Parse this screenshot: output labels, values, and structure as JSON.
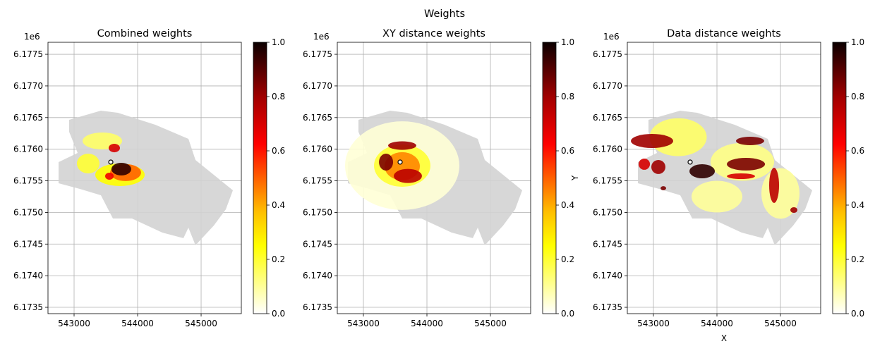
{
  "chart_data": {
    "type": "scatter",
    "suptitle": "Weights",
    "xlim": [
      542589,
      545633
    ],
    "ylim": [
      6173400,
      6177690
    ],
    "x_ticks": [
      543000,
      544000,
      545000
    ],
    "x_tick_labels": [
      "543000",
      "544000",
      "545000"
    ],
    "y_ticks": [
      6173500,
      6174000,
      6174500,
      6175000,
      6175500,
      6176000,
      6176500,
      6177000,
      6177500
    ],
    "y_tick_labels": [
      "6.1735",
      "6.1740",
      "6.1745",
      "6.1750",
      "6.1755",
      "6.1760",
      "6.1765",
      "6.1770",
      "6.1775"
    ],
    "y_offset_label": "1e6",
    "grid": true,
    "colormap": "hot_r",
    "colorbar_ticks": [
      0.0,
      0.2,
      0.4,
      0.6,
      0.8,
      1.0
    ],
    "colorbar_tick_labels": [
      "0.0",
      "0.2",
      "0.4",
      "0.6",
      "0.8",
      "1.0"
    ],
    "background_color": "#d3d3d3",
    "marker": {
      "x": 543578,
      "y": 6175796
    },
    "footprint": [
      [
        542922,
        6176464
      ],
      [
        543422,
        6176609
      ],
      [
        543689,
        6176576
      ],
      [
        544278,
        6176386
      ],
      [
        544800,
        6176163
      ],
      [
        544911,
        6175829
      ],
      [
        545500,
        6175350
      ],
      [
        545389,
        6175049
      ],
      [
        545200,
        6174793
      ],
      [
        544911,
        6174481
      ],
      [
        544800,
        6174760
      ],
      [
        544722,
        6174593
      ],
      [
        544389,
        6174682
      ],
      [
        543911,
        6174904
      ],
      [
        543611,
        6174904
      ],
      [
        543422,
        6175272
      ],
      [
        543089,
        6175372
      ],
      [
        542756,
        6175462
      ],
      [
        542756,
        6175796
      ],
      [
        543056,
        6175941
      ],
      [
        542922,
        6176275
      ]
    ],
    "panels": [
      {
        "title": "Combined weights",
        "xlabel": "",
        "ylabel": "",
        "patches": [
          {
            "x": 543445,
            "y": 6176130,
            "rx": 311,
            "ry": 134,
            "w": 0.15
          },
          {
            "x": 543722,
            "y": 6175595,
            "rx": 389,
            "ry": 178,
            "w": 0.25
          },
          {
            "x": 543222,
            "y": 6175773,
            "rx": 178,
            "ry": 156,
            "w": 0.2
          },
          {
            "x": 543811,
            "y": 6175630,
            "rx": 244,
            "ry": 134,
            "w": 0.5
          },
          {
            "x": 543633,
            "y": 6176018,
            "rx": 89,
            "ry": 67,
            "w": 0.7
          },
          {
            "x": 543556,
            "y": 6175573,
            "rx": 67,
            "ry": 56,
            "w": 0.65
          },
          {
            "x": 543744,
            "y": 6175685,
            "rx": 156,
            "ry": 100,
            "w": 0.95
          }
        ]
      },
      {
        "title": "XY distance weights",
        "xlabel": "",
        "ylabel": "",
        "patches": [
          {
            "x": 543611,
            "y": 6175740,
            "rx": 900,
            "ry": 700,
            "w": 0.04
          },
          {
            "x": 543611,
            "y": 6175740,
            "rx": 444,
            "ry": 334,
            "w": 0.2
          },
          {
            "x": 543611,
            "y": 6175730,
            "rx": 278,
            "ry": 223,
            "w": 0.45
          },
          {
            "x": 543356,
            "y": 6175796,
            "rx": 111,
            "ry": 134,
            "w": 0.85
          },
          {
            "x": 543611,
            "y": 6176057,
            "rx": 222,
            "ry": 67,
            "w": 0.8
          },
          {
            "x": 543700,
            "y": 6175577,
            "rx": 222,
            "ry": 111,
            "w": 0.75
          }
        ]
      },
      {
        "title": "Data distance weights",
        "xlabel": "X",
        "ylabel": "Y",
        "patches": [
          {
            "x": 543389,
            "y": 6176190,
            "rx": 450,
            "ry": 300,
            "w": 0.15
          },
          {
            "x": 544400,
            "y": 6175800,
            "rx": 500,
            "ry": 300,
            "w": 0.12
          },
          {
            "x": 544000,
            "y": 6175250,
            "rx": 400,
            "ry": 250,
            "w": 0.1
          },
          {
            "x": 545000,
            "y": 6175300,
            "rx": 300,
            "ry": 400,
            "w": 0.1
          },
          {
            "x": 542978,
            "y": 6176130,
            "rx": 333,
            "ry": 111,
            "w": 0.8
          },
          {
            "x": 543767,
            "y": 6175651,
            "rx": 200,
            "ry": 111,
            "w": 0.95
          },
          {
            "x": 544456,
            "y": 6175763,
            "rx": 300,
            "ry": 100,
            "w": 0.85
          },
          {
            "x": 544522,
            "y": 6176130,
            "rx": 222,
            "ry": 67,
            "w": 0.85
          },
          {
            "x": 543078,
            "y": 6175718,
            "rx": 111,
            "ry": 111,
            "w": 0.8
          },
          {
            "x": 542856,
            "y": 6175763,
            "rx": 89,
            "ry": 89,
            "w": 0.7
          },
          {
            "x": 544900,
            "y": 6175428,
            "rx": 78,
            "ry": 278,
            "w": 0.75
          },
          {
            "x": 544378,
            "y": 6175573,
            "rx": 222,
            "ry": 45,
            "w": 0.7
          },
          {
            "x": 545211,
            "y": 6175038,
            "rx": 56,
            "ry": 45,
            "w": 0.8
          },
          {
            "x": 543156,
            "y": 6175383,
            "rx": 44,
            "ry": 33,
            "w": 0.85
          }
        ]
      }
    ]
  }
}
